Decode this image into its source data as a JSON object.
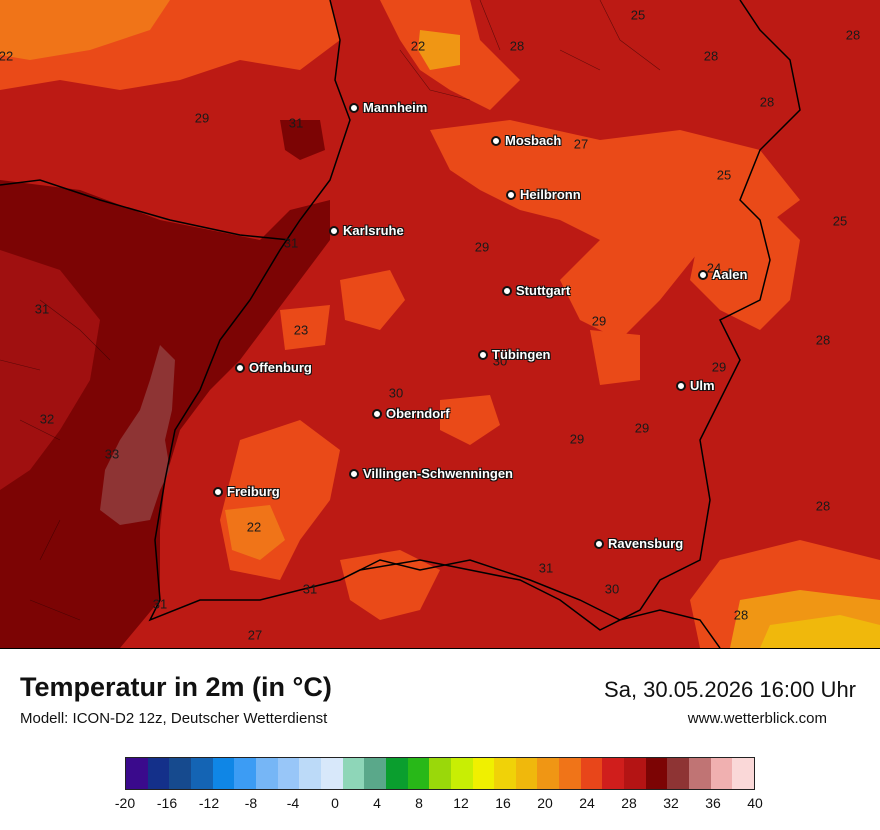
{
  "title": "Temperatur in 2m (in °C)",
  "model": "Modell: ICON-D2 12z, Deutscher Wetterdienst",
  "datetime": "Sa, 30.05.2026 16:00 Uhr",
  "website": "www.wetterblick.com",
  "cities": [
    {
      "name": "Mannheim"
    },
    {
      "name": "Mosbach"
    },
    {
      "name": "Heilbronn"
    },
    {
      "name": "Karlsruhe"
    },
    {
      "name": "Aalen"
    },
    {
      "name": "Stuttgart"
    },
    {
      "name": "Tübingen"
    },
    {
      "name": "Offenburg"
    },
    {
      "name": "Ulm"
    },
    {
      "name": "Oberndorf"
    },
    {
      "name": "Villingen-Schwenningen"
    },
    {
      "name": "Freiburg"
    },
    {
      "name": "Ravensburg"
    }
  ],
  "temperature_values": [
    "25",
    "22",
    "28",
    "28",
    "22",
    "28",
    "28",
    "29",
    "31",
    "27",
    "25",
    "25",
    "29",
    "24",
    "31",
    "29",
    "23",
    "28",
    "31",
    "30",
    "29",
    "32",
    "30",
    "29",
    "29",
    "33",
    "28",
    "22",
    "31",
    "30",
    "31",
    "31",
    "28",
    "27"
  ],
  "legend": {
    "colors": [
      "#3a0a8c",
      "#14308a",
      "#164a8e",
      "#1464b4",
      "#0f86e6",
      "#3c9cf4",
      "#76b6f6",
      "#98c6f8",
      "#bcdaf8",
      "#d8e8fa",
      "#8ed6b8",
      "#5aa88a",
      "#0a9e2e",
      "#28b818",
      "#9ad80a",
      "#c8ee04",
      "#f0f000",
      "#f0d208",
      "#f0b80c",
      "#f09614",
      "#f07418",
      "#e8461a",
      "#d01e1c",
      "#b41414",
      "#7c0404",
      "#8e3434",
      "#c07474",
      "#f0b0b0",
      "#fad8d8"
    ],
    "ticks": [
      "-20",
      "-16",
      "-12",
      "-8",
      "-4",
      "0",
      "4",
      "8",
      "12",
      "16",
      "20",
      "24",
      "28",
      "32",
      "36",
      "40"
    ]
  }
}
